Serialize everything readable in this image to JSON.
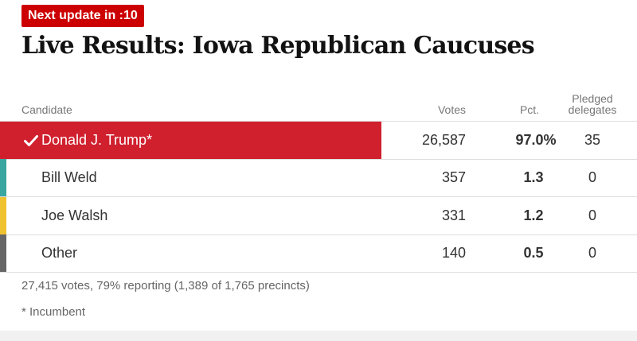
{
  "update_badge": "Next update in :10",
  "title": "Live Results: Iowa Republican Caucuses",
  "headers": {
    "candidate": "Candidate",
    "votes": "Votes",
    "pct": "Pct.",
    "delegates": "Pledged delegates"
  },
  "rows": [
    {
      "name": "Donald J. Trump*",
      "votes": "26,587",
      "pct": "97.0%",
      "delegates": "35",
      "color": "#d0202e",
      "winner": true
    },
    {
      "name": "Bill Weld",
      "votes": "357",
      "pct": "1.3",
      "delegates": "0",
      "color": "#3aa6a0"
    },
    {
      "name": "Joe Walsh",
      "votes": "331",
      "pct": "1.2",
      "delegates": "0",
      "color": "#f0c230"
    },
    {
      "name": "Other",
      "votes": "140",
      "pct": "0.5",
      "delegates": "0",
      "color": "#666666"
    }
  ],
  "footer": {
    "reporting": "27,415 votes, 79% reporting (1,389 of 1,765 precincts)",
    "note": "* Incumbent"
  },
  "colors": {
    "badge": "#cc0000",
    "winner": "#d0202e"
  }
}
